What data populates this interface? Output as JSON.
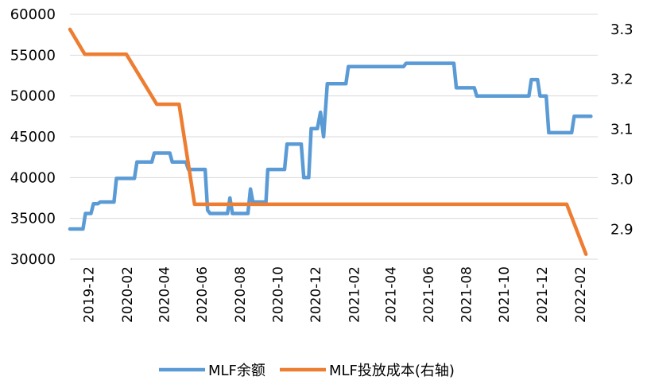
{
  "chart_data": {
    "type": "line",
    "title": "",
    "xlabel": "",
    "ylabel": "",
    "grid": "horizontal",
    "legend_position": "bottom",
    "x_ticks": [
      "2019-12",
      "2020-02",
      "2020-04",
      "2020-06",
      "2020-08",
      "2020-10",
      "2020-12",
      "2021-02",
      "2021-04",
      "2021-06",
      "2021-08",
      "2021-10",
      "2021-12",
      "2022-02"
    ],
    "y_left": {
      "range": [
        30000,
        60000
      ],
      "ticks": [
        "30000",
        "35000",
        "40000",
        "45000",
        "50000",
        "55000",
        "60000"
      ]
    },
    "y_right": {
      "range": [
        2.84,
        3.33
      ],
      "ticks": [
        "2.9",
        "3.0",
        "3.1",
        "3.2",
        "3.3"
      ]
    },
    "series": [
      {
        "name": "MLF余额",
        "axis": "left",
        "color": "#5B9BD5",
        "points": [
          [
            "2019-11-01",
            33700
          ],
          [
            "2019-11-22",
            33700
          ],
          [
            "2019-11-26",
            35600
          ],
          [
            "2019-12-05",
            35600
          ],
          [
            "2019-12-09",
            36800
          ],
          [
            "2019-12-16",
            36800
          ],
          [
            "2019-12-20",
            37000
          ],
          [
            "2020-01-11",
            37000
          ],
          [
            "2020-01-15",
            39900
          ],
          [
            "2020-02-13",
            39900
          ],
          [
            "2020-02-17",
            41900
          ],
          [
            "2020-03-12",
            41900
          ],
          [
            "2020-03-16",
            43000
          ],
          [
            "2020-04-10",
            43000
          ],
          [
            "2020-04-14",
            41900
          ],
          [
            "2020-05-06",
            41900
          ],
          [
            "2020-05-10",
            41000
          ],
          [
            "2020-06-06",
            41000
          ],
          [
            "2020-06-10",
            36000
          ],
          [
            "2020-06-14",
            35600
          ],
          [
            "2020-07-12",
            35600
          ],
          [
            "2020-07-16",
            37500
          ],
          [
            "2020-07-20",
            35600
          ],
          [
            "2020-08-14",
            35600
          ],
          [
            "2020-08-18",
            38600
          ],
          [
            "2020-08-22",
            37000
          ],
          [
            "2020-09-12",
            37000
          ],
          [
            "2020-09-15",
            41000
          ],
          [
            "2020-10-12",
            41000
          ],
          [
            "2020-10-16",
            44100
          ],
          [
            "2020-11-08",
            44100
          ],
          [
            "2020-11-12",
            40000
          ],
          [
            "2020-11-20",
            40000
          ],
          [
            "2020-11-24",
            46000
          ],
          [
            "2020-12-04",
            46000
          ],
          [
            "2020-12-09",
            48000
          ],
          [
            "2020-12-14",
            45000
          ],
          [
            "2020-12-20",
            51500
          ],
          [
            "2021-01-19",
            51500
          ],
          [
            "2021-01-23",
            53600
          ],
          [
            "2021-04-22",
            53600
          ],
          [
            "2021-04-26",
            54000
          ],
          [
            "2021-07-12",
            54000
          ],
          [
            "2021-07-16",
            51000
          ],
          [
            "2021-08-14",
            51000
          ],
          [
            "2021-08-18",
            50000
          ],
          [
            "2021-11-10",
            50000
          ],
          [
            "2021-11-14",
            52000
          ],
          [
            "2021-11-24",
            52000
          ],
          [
            "2021-11-28",
            50000
          ],
          [
            "2021-12-08",
            50000
          ],
          [
            "2021-12-12",
            45500
          ],
          [
            "2022-01-18",
            45500
          ],
          [
            "2022-01-22",
            47500
          ],
          [
            "2022-02-18",
            47500
          ]
        ]
      },
      {
        "name": "MLF投放成本(右轴)",
        "axis": "right",
        "color": "#ED7D31",
        "points": [
          [
            "2019-11-01",
            3.3
          ],
          [
            "2019-11-25",
            3.25
          ],
          [
            "2020-01-31",
            3.25
          ],
          [
            "2020-03-20",
            3.15
          ],
          [
            "2020-04-25",
            3.15
          ],
          [
            "2020-05-20",
            2.95
          ],
          [
            "2022-01-10",
            2.95
          ],
          [
            "2022-02-10",
            2.85
          ]
        ]
      }
    ]
  }
}
